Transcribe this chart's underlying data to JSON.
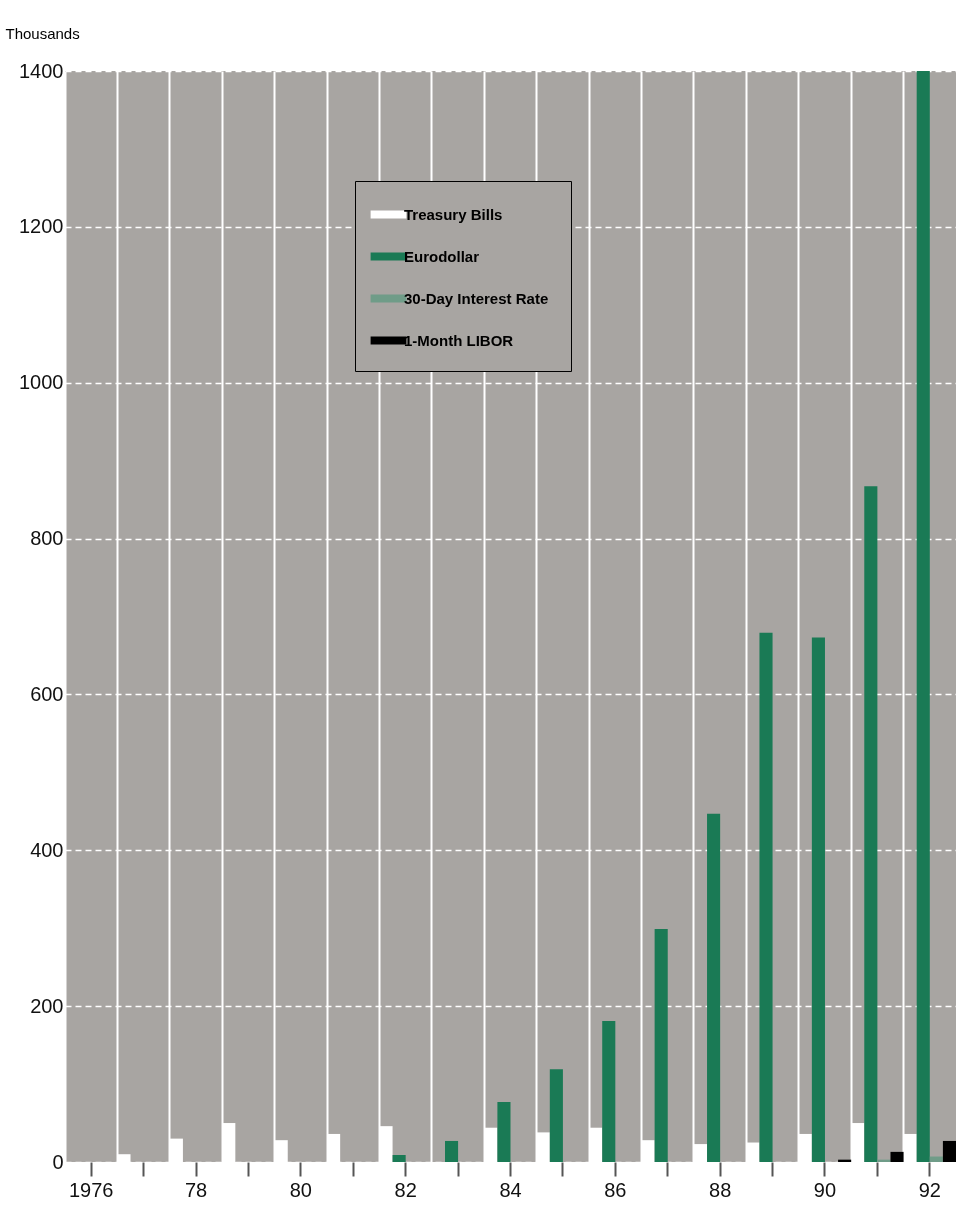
{
  "chart_data": {
    "type": "bar",
    "ylabel": "Thousands",
    "categories": [
      "1976",
      null,
      "78",
      null,
      "80",
      null,
      "82",
      null,
      "84",
      null,
      "86",
      null,
      "88",
      null,
      "90",
      null,
      "92"
    ],
    "series": [
      {
        "name": "Treasury Bills",
        "color": "#ffffff",
        "values": [
          null,
          10,
          30,
          50,
          28,
          36,
          46,
          null,
          44,
          38,
          44,
          28,
          23,
          25,
          36,
          50,
          36
        ]
      },
      {
        "name": "Eurodollar",
        "color": "#1a7a55",
        "values": [
          null,
          null,
          null,
          null,
          null,
          null,
          9,
          27,
          77,
          119,
          181,
          299,
          447,
          679,
          673,
          867,
          1400
        ]
      },
      {
        "name": "30-Day Interest Rate",
        "color": "#6f9c88",
        "values": [
          null,
          null,
          null,
          null,
          null,
          null,
          null,
          null,
          null,
          null,
          null,
          null,
          null,
          null,
          null,
          3,
          7
        ]
      },
      {
        "name": "1-Month LIBOR",
        "color": "#000000",
        "values": [
          null,
          null,
          null,
          null,
          null,
          null,
          null,
          null,
          null,
          null,
          null,
          null,
          null,
          null,
          3,
          13,
          27
        ]
      }
    ],
    "ylim": [
      0,
      1400
    ],
    "yticks": [
      0,
      200,
      400,
      600,
      800,
      1000,
      1200,
      1400
    ],
    "grid": true,
    "legend": "top"
  }
}
